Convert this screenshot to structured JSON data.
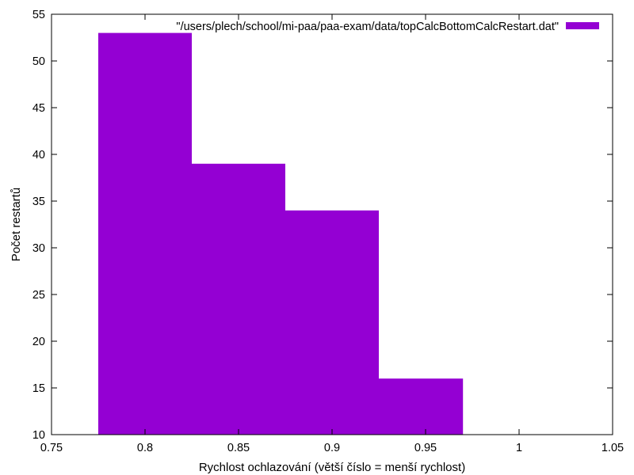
{
  "chart_data": {
    "type": "bar",
    "xlabel": "Rychlost ochlazování (větší číslo = menší rychlost)",
    "ylabel": "Počet restartů",
    "xlim": [
      0.75,
      1.05
    ],
    "ylim": [
      10,
      55
    ],
    "x_ticks": [
      0.75,
      0.8,
      0.85,
      0.9,
      0.95,
      1,
      1.05
    ],
    "x_tick_labels": [
      "0.75",
      "0.8",
      "0.85",
      "0.9",
      "0.95",
      "1",
      "1.05"
    ],
    "y_ticks": [
      10,
      15,
      20,
      25,
      30,
      35,
      40,
      45,
      50,
      55
    ],
    "y_tick_labels": [
      "10",
      "15",
      "20",
      "25",
      "30",
      "35",
      "40",
      "45",
      "50",
      "55"
    ],
    "grid": false,
    "legend_position": "top-right",
    "series": [
      {
        "name": "\"/users/plech/school/mi-paa/paa-exam/data/topCalcBottomCalcRestart.dat\"",
        "color": "#9400d3",
        "bars": [
          {
            "x0": 0.775,
            "x1": 0.825,
            "y": 53
          },
          {
            "x0": 0.825,
            "x1": 0.875,
            "y": 39
          },
          {
            "x0": 0.875,
            "x1": 0.925,
            "y": 34
          },
          {
            "x0": 0.925,
            "x1": 0.97,
            "y": 16
          }
        ]
      }
    ]
  }
}
